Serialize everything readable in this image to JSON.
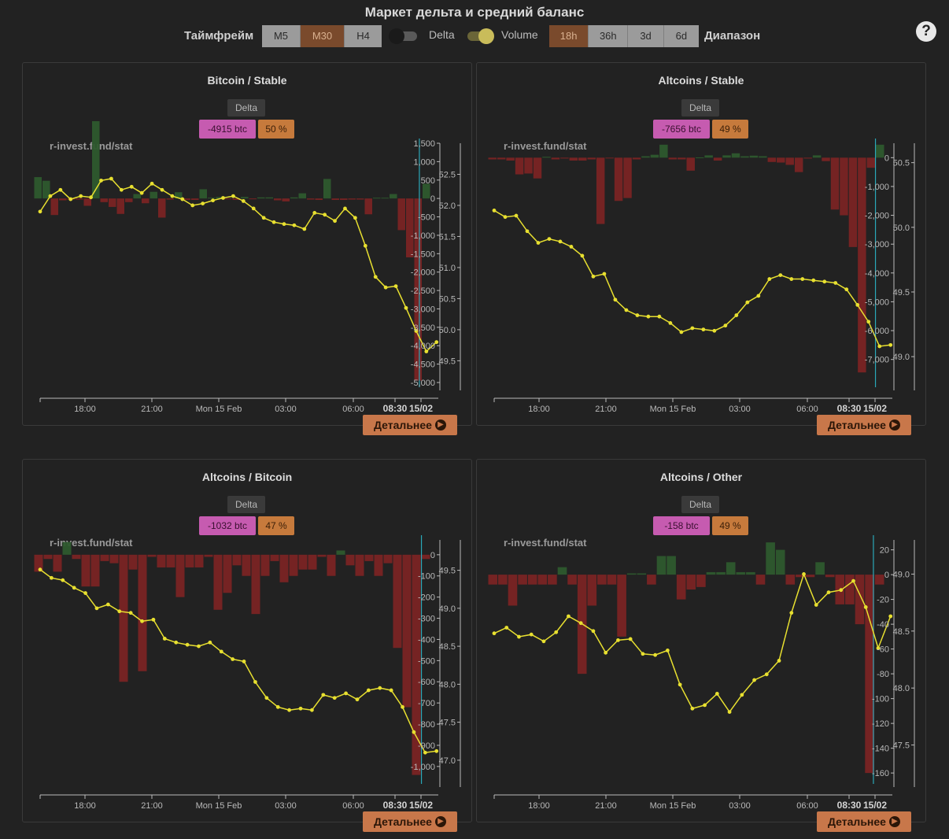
{
  "header": {
    "title": "Маркет дельта и средний баланс",
    "timeframe_label": "Таймфрейм",
    "timeframe_options": [
      "M5",
      "M30",
      "H4"
    ],
    "timeframe_selected": "M30",
    "delta_toggle_label": "Delta",
    "delta_toggle_on": false,
    "volume_toggle_label": "Volume",
    "volume_toggle_on": true,
    "range_options": [
      "18h",
      "36h",
      "3d",
      "6d"
    ],
    "range_selected": "18h",
    "range_label": "Диапазон",
    "help_icon": "?"
  },
  "colors": {
    "positive_bar": "#2e5a2e",
    "negative_bar": "#7a2424",
    "balance_line": "#e8e030",
    "marker_line": "#2aa8b8",
    "delta_chip": "#c65bb0",
    "pct_chip": "#c67a3c"
  },
  "panels": [
    {
      "title": "Bitcoin / Stable",
      "delta_label": "Delta",
      "delta_value": "-4915 btc",
      "percent": "50 %",
      "watermark": "r-invest.fund/stat",
      "details_button": "Детальнее",
      "chart_data": {
        "type": "bar+line",
        "x_tick_labels": [
          "18:00",
          "21:00",
          "Mon 15 Feb",
          "03:00",
          "06:00"
        ],
        "x_end_labels": [
          "08:30",
          "15/02"
        ],
        "y_left_ticks": [
          "1,500",
          "1,000",
          "500",
          "0",
          "-500",
          "-1,000",
          "-1,500",
          "-2,000",
          "-2,500",
          "-3,000",
          "-3,500",
          "-4,000",
          "-4,500",
          "-5,000"
        ],
        "y_right_ticks": [
          "52.5",
          "52.0",
          "51.5",
          "51.0",
          "50.5",
          "50.0",
          "49.5"
        ],
        "y_left_range": [
          -5000,
          1500
        ],
        "y_right_range": [
          49.15,
          53.0
        ],
        "delta_bars": [
          580,
          480,
          -450,
          -50,
          -30,
          -30,
          -200,
          2100,
          -100,
          -230,
          -420,
          -100,
          120,
          -130,
          180,
          -520,
          -30,
          170,
          -40,
          -40,
          250,
          20,
          40,
          -20,
          -40,
          40,
          -20,
          30,
          30,
          -50,
          -80,
          30,
          140,
          -30,
          -40,
          530,
          -40,
          -40,
          -30,
          -30,
          -430,
          20,
          20,
          120,
          -860,
          -1600,
          -4950,
          400
        ],
        "balance_line": [
          51.9,
          52.15,
          52.25,
          52.1,
          52.15,
          52.13,
          52.4,
          52.43,
          52.25,
          52.3,
          52.2,
          52.35,
          52.25,
          52.15,
          52.1,
          52.0,
          52.03,
          52.08,
          52.12,
          52.15,
          52.07,
          51.95,
          51.8,
          51.73,
          51.7,
          51.68,
          51.62,
          51.88,
          51.85,
          51.75,
          51.95,
          51.8,
          51.35,
          50.85,
          50.68,
          50.7,
          50.35,
          49.98,
          49.65,
          49.8
        ],
        "current_marker_x_fraction": 0.935
      }
    },
    {
      "title": "Altcoins / Stable",
      "delta_label": "Delta",
      "delta_value": "-7656 btc",
      "percent": "49 %",
      "watermark": "r-invest.fund/stat",
      "details_button": "Детальнее",
      "chart_data": {
        "type": "bar+line",
        "x_tick_labels": [
          "18:00",
          "21:00",
          "Mon 15 Feb",
          "03:00",
          "06:00"
        ],
        "x_end_labels": [
          "08:30",
          "15/02"
        ],
        "y_left_ticks": [
          "0",
          "-1,000",
          "-2,000",
          "-3,000",
          "-4,000",
          "-5,000",
          "-6,000",
          "-7,000"
        ],
        "y_right_ticks": [
          "50.5",
          "50.0",
          "49.5",
          "49.0"
        ],
        "y_left_range": [
          -7800,
          500
        ],
        "y_right_range": [
          48.8,
          50.65
        ],
        "delta_bars": [
          -60,
          -60,
          -100,
          -580,
          -550,
          -720,
          30,
          -60,
          -30,
          -100,
          -100,
          -60,
          -2300,
          -5,
          -1500,
          -1400,
          -60,
          50,
          100,
          450,
          -60,
          -60,
          -450,
          10,
          80,
          -100,
          80,
          150,
          50,
          70,
          50,
          -150,
          -170,
          -250,
          -500,
          -30,
          80,
          -120,
          -1800,
          -2000,
          -3100,
          -7450,
          -350,
          450
        ],
        "balance_line": [
          50.13,
          50.08,
          50.09,
          49.97,
          49.88,
          49.91,
          49.89,
          49.85,
          49.78,
          49.62,
          49.64,
          49.44,
          49.36,
          49.32,
          49.31,
          49.31,
          49.26,
          49.19,
          49.22,
          49.21,
          49.2,
          49.24,
          49.32,
          49.42,
          49.47,
          49.6,
          49.63,
          49.6,
          49.6,
          49.59,
          49.58,
          49.57,
          49.52,
          49.4,
          49.27,
          49.08,
          49.09
        ],
        "current_marker_x_fraction": 0.94
      }
    },
    {
      "title": "Altcoins / Bitcoin",
      "delta_label": "Delta",
      "delta_value": "-1032 btc",
      "percent": "47 %",
      "watermark": "r-invest.fund/stat",
      "details_button": "Детальнее",
      "chart_data": {
        "type": "bar+line",
        "x_tick_labels": [
          "18:00",
          "21:00",
          "Mon 15 Feb",
          "03:00",
          "06:00"
        ],
        "x_end_labels": [
          "08:30",
          "15/02"
        ],
        "y_left_ticks": [
          "0",
          "-100",
          "-200",
          "-300",
          "-400",
          "-500",
          "-600",
          "-700",
          "-800",
          "-900",
          "-1,000"
        ],
        "y_right_ticks": [
          "49.5",
          "49.0",
          "48.5",
          "48.0",
          "47.5",
          "47.0"
        ],
        "y_left_range": [
          -1060,
          70
        ],
        "y_right_range": [
          46.75,
          49.9
        ],
        "delta_bars": [
          -80,
          -20,
          -80,
          60,
          -20,
          -150,
          -150,
          -30,
          -40,
          -600,
          -70,
          -550,
          -10,
          -60,
          -60,
          -200,
          -60,
          -60,
          -10,
          -260,
          -180,
          -50,
          -100,
          -280,
          -100,
          -30,
          -130,
          -100,
          -70,
          -70,
          -10,
          -100,
          20,
          -50,
          -100,
          -30,
          -100,
          -40,
          -440,
          -720,
          -1040,
          -20
        ],
        "balance_line": [
          49.51,
          49.4,
          49.37,
          49.27,
          49.2,
          49.0,
          49.05,
          48.96,
          48.94,
          48.83,
          48.85,
          48.6,
          48.55,
          48.52,
          48.5,
          48.55,
          48.43,
          48.33,
          48.3,
          48.03,
          47.82,
          47.7,
          47.66,
          47.68,
          47.66,
          47.86,
          47.82,
          47.88,
          47.8,
          47.92,
          47.95,
          47.92,
          47.7,
          47.37,
          47.1,
          47.12
        ],
        "current_marker_x_fraction": 0.94
      }
    },
    {
      "title": "Altcoins / Other",
      "delta_label": "Delta",
      "delta_value": "-158 btc",
      "percent": "49 %",
      "watermark": "r-invest.fund/stat",
      "details_button": "Детальнее",
      "chart_data": {
        "type": "bar+line",
        "x_tick_labels": [
          "18:00",
          "21:00",
          "Mon 15 Feb",
          "03:00",
          "06:00"
        ],
        "x_end_labels": [
          "08:30",
          "15/02"
        ],
        "y_left_ticks": [
          "20",
          "0",
          "-20",
          "-40",
          "-60",
          "-80",
          "-100",
          "-120",
          "-140",
          "-160"
        ],
        "y_right_ticks": [
          "49.0",
          "48.5",
          "48.0",
          "47.5"
        ],
        "y_left_range": [
          -165,
          28
        ],
        "y_right_range": [
          47.2,
          49.3
        ],
        "delta_bars": [
          -8,
          -8,
          -25,
          -8,
          -8,
          -8,
          -8,
          6,
          -8,
          -80,
          -25,
          -8,
          -8,
          -50,
          1,
          1,
          -8,
          15,
          15,
          -20,
          -12,
          -10,
          2,
          2,
          10,
          2,
          2,
          -8,
          26,
          20,
          -8,
          -2,
          -2,
          10,
          -2,
          -24,
          -24,
          -40,
          -160,
          -8
        ],
        "balance_line": [
          48.48,
          48.53,
          48.45,
          48.47,
          48.41,
          48.49,
          48.63,
          48.57,
          48.5,
          48.31,
          48.42,
          48.43,
          48.3,
          48.29,
          48.33,
          48.03,
          47.82,
          47.85,
          47.95,
          47.79,
          47.94,
          48.07,
          48.12,
          48.24,
          48.66,
          49.0,
          48.73,
          48.84,
          48.86,
          48.94,
          48.71,
          48.35,
          48.63
        ],
        "current_marker_x_fraction": 0.935
      }
    }
  ]
}
